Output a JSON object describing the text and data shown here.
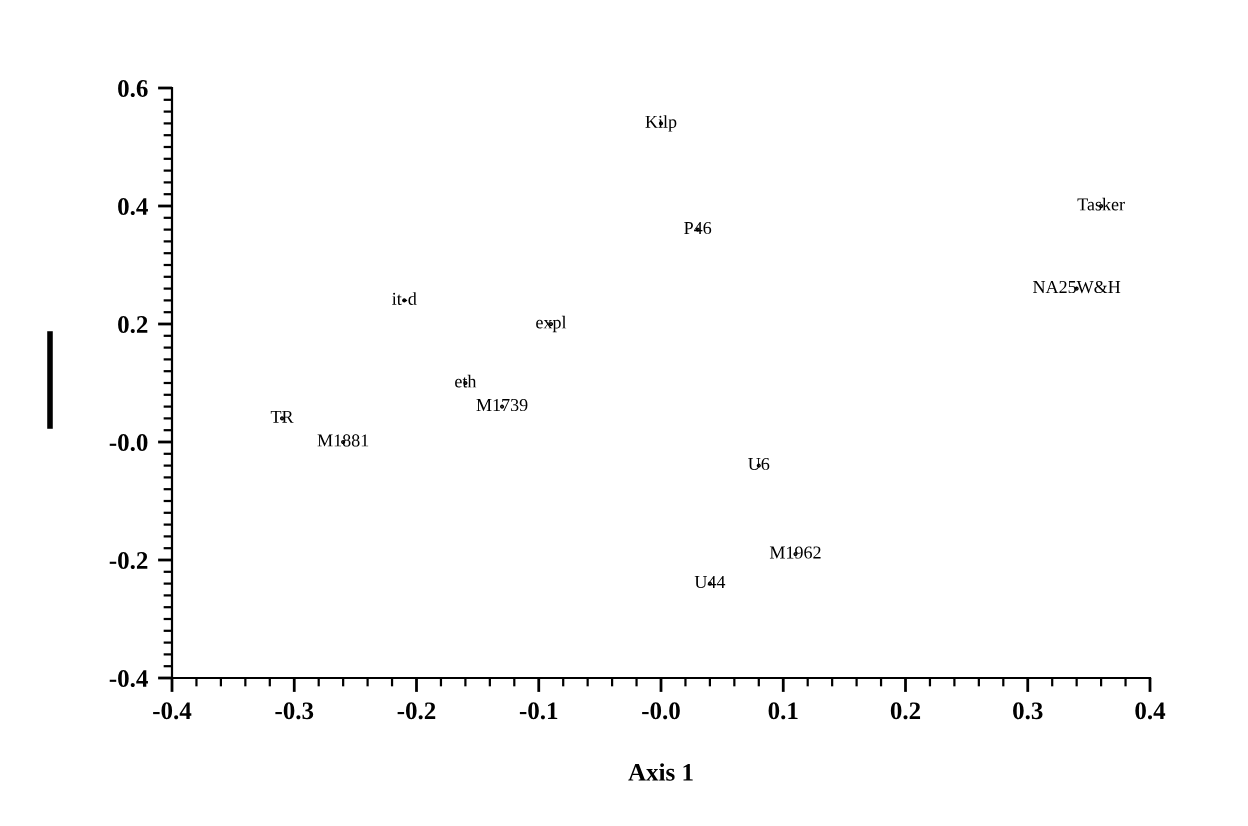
{
  "chart_data": {
    "type": "scatter",
    "xlabel": "Axis 1",
    "xlim": [
      -0.4,
      0.4
    ],
    "xticks": [
      -0.4,
      -0.3,
      -0.2,
      -0.1,
      {
        "value": 0,
        "label": "-0.0"
      },
      0.1,
      0.2,
      0.3,
      0.4
    ],
    "ylim": [
      -0.4,
      0.6
    ],
    "yticks": [
      -0.4,
      -0.2,
      {
        "value": 0,
        "label": "-0.0"
      },
      0.2,
      0.4,
      0.6
    ],
    "grid": false,
    "legend": false,
    "marker": "none",
    "series": [
      {
        "color": "#000000",
        "x": [
          0.0,
          0.03,
          0.36,
          0.34,
          -0.21,
          -0.09,
          -0.13,
          -0.31,
          -0.16,
          -0.26,
          0.08,
          0.04,
          0.11
        ],
        "values": [
          0.54,
          0.36,
          0.4,
          0.26,
          0.24,
          0.2,
          0.06,
          0.04,
          0.1,
          0.0,
          -0.04,
          -0.24,
          -0.19
        ],
        "value_labels": [
          "Kilp",
          "P46",
          "Tasker",
          "NA25W&H",
          "it-d",
          "expl",
          "M1739",
          "TR",
          "eth",
          "M1881",
          "U6",
          "U44",
          "M1962"
        ]
      }
    ]
  }
}
